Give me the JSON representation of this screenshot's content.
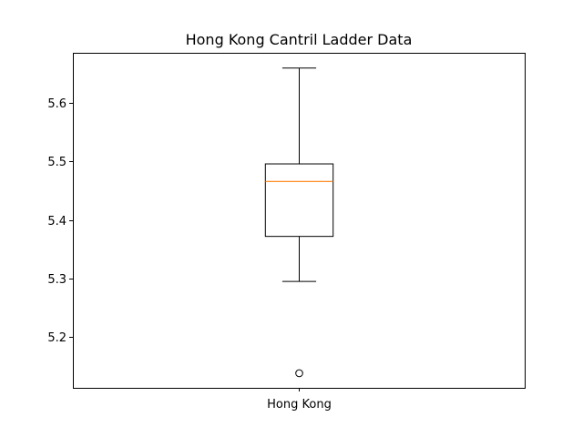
{
  "chart_data": {
    "type": "boxplot",
    "title": "Hong Kong Cantril Ladder Data",
    "xlabel": "",
    "ylabel": "",
    "categories": [
      "Hong Kong"
    ],
    "ylim": [
      5.113,
      5.686
    ],
    "yticks": [
      5.2,
      5.3,
      5.4,
      5.5,
      5.6
    ],
    "grid": false,
    "series": [
      {
        "category": "Hong Kong",
        "whisker_low": 5.295,
        "q1": 5.372,
        "median": 5.466,
        "q3": 5.496,
        "whisker_high": 5.66,
        "outliers": [
          5.138
        ]
      }
    ],
    "colors": {
      "box": "#000000",
      "median": "#ff7f0e",
      "axes": "#000000"
    }
  }
}
